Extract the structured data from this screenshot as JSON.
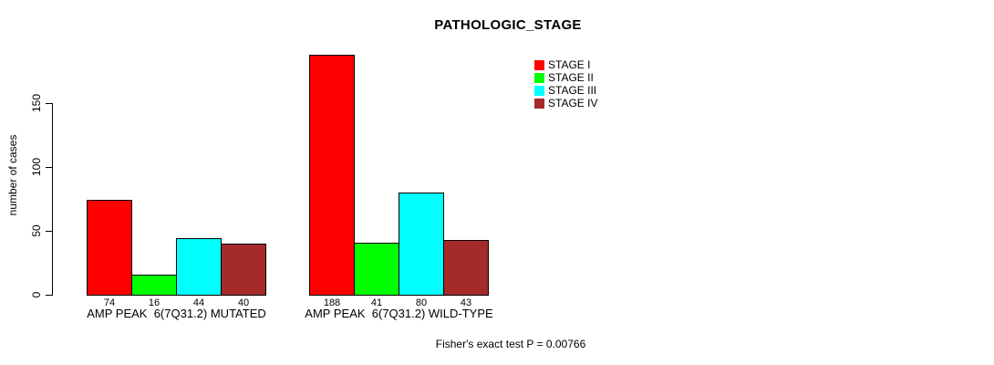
{
  "chart_data": {
    "type": "bar",
    "title": "PATHOLOGIC_STAGE",
    "ylabel": "number of cases",
    "ylim": [
      0,
      150
    ],
    "yticks": [
      0,
      50,
      100,
      150
    ],
    "grid": false,
    "legend_position": "top-right",
    "categories": [
      "AMP PEAK  6(7Q31.2) MUTATED",
      "AMP PEAK  6(7Q31.2) WILD-TYPE"
    ],
    "series": [
      {
        "name": "STAGE I",
        "color": "#ff0000",
        "values": [
          74,
          188
        ]
      },
      {
        "name": "STAGE II",
        "color": "#00ff00",
        "values": [
          16,
          41
        ]
      },
      {
        "name": "STAGE III",
        "color": "#00ffff",
        "values": [
          44,
          80
        ]
      },
      {
        "name": "STAGE IV",
        "color": "#a52a2a",
        "values": [
          40,
          43
        ]
      }
    ],
    "bar_value_labels_shown": true,
    "annotation": "Fisher's exact test P = 0.00766",
    "text_color": "#000000",
    "background_color": "#ffffff"
  }
}
